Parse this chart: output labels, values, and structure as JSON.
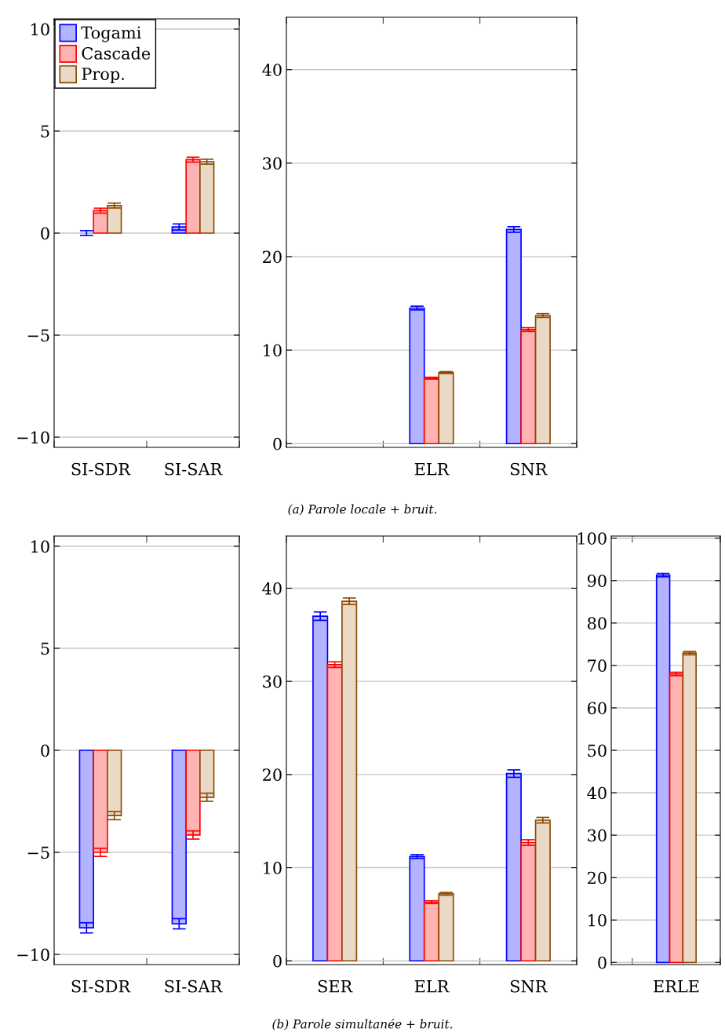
{
  "chart_data": [
    {
      "type": "bar",
      "categories": [
        "SI-SDR",
        "SI-SAR"
      ],
      "ylim": [
        -10.5,
        10.5
      ],
      "yticks": [
        -10,
        -5,
        0,
        5,
        10
      ],
      "grid": "y",
      "legend": "top left",
      "series": [
        {
          "name": "Togami",
          "color": "#b3b3ff",
          "values": [
            0.0,
            0.3
          ],
          "errors": [
            0.12,
            0.15
          ]
        },
        {
          "name": "Cascade",
          "color": "#ffb3b3",
          "values": [
            1.1,
            3.6
          ],
          "errors": [
            0.12,
            0.12
          ]
        },
        {
          "name": "Prop.",
          "color": "#ead9c6",
          "values": [
            1.35,
            3.5
          ],
          "errors": [
            0.12,
            0.12
          ]
        }
      ]
    },
    {
      "type": "bar",
      "categories": [
        null,
        "ELR",
        "SNR"
      ],
      "ylim": [
        -0.4,
        45.6
      ],
      "yticks": [
        0,
        10,
        20,
        30,
        40
      ],
      "grid": "y",
      "annotations": [
        "(a) Parole locale + bruit."
      ],
      "series": [
        {
          "color": "#b3b3ff",
          "values": [
            null,
            14.5,
            22.9
          ],
          "errors": [
            null,
            0.2,
            0.3
          ]
        },
        {
          "color": "#ffb3b3",
          "values": [
            null,
            7.0,
            12.2
          ],
          "errors": [
            null,
            0.1,
            0.2
          ]
        },
        {
          "color": "#ead9c6",
          "values": [
            null,
            7.6,
            13.7
          ],
          "errors": [
            null,
            0.1,
            0.2
          ]
        }
      ]
    },
    {
      "type": "bar",
      "categories": [
        "SI-SDR",
        "SI-SAR"
      ],
      "ylim": [
        -10.5,
        10.5
      ],
      "yticks": [
        -10,
        -5,
        0,
        5,
        10
      ],
      "grid": "y",
      "series": [
        {
          "color": "#b3b3ff",
          "values": [
            -8.7,
            -8.5
          ],
          "errors": [
            0.25,
            0.25
          ]
        },
        {
          "color": "#ffb3b3",
          "values": [
            -5.0,
            -4.15
          ],
          "errors": [
            0.2,
            0.2
          ]
        },
        {
          "color": "#ead9c6",
          "values": [
            -3.2,
            -2.3
          ],
          "errors": [
            0.2,
            0.2
          ]
        }
      ]
    },
    {
      "type": "bar",
      "categories": [
        "SER",
        "ELR",
        "SNR"
      ],
      "ylim": [
        -0.4,
        45.6
      ],
      "yticks": [
        0,
        10,
        20,
        30,
        40
      ],
      "grid": "y",
      "annotations": [
        "(b) Parole simultanée + bruit."
      ],
      "series": [
        {
          "color": "#b3b3ff",
          "values": [
            37.0,
            11.2,
            20.1
          ],
          "errors": [
            0.45,
            0.2,
            0.4
          ]
        },
        {
          "color": "#ffb3b3",
          "values": [
            31.8,
            6.3,
            12.7
          ],
          "errors": [
            0.3,
            0.15,
            0.3
          ]
        },
        {
          "color": "#ead9c6",
          "values": [
            38.6,
            7.2,
            15.1
          ],
          "errors": [
            0.35,
            0.15,
            0.3
          ]
        }
      ]
    },
    {
      "type": "bar",
      "categories": [
        "ERLE"
      ],
      "ylim": [
        -0.5,
        100.5
      ],
      "yticks": [
        0,
        10,
        20,
        30,
        40,
        50,
        60,
        70,
        80,
        90,
        100
      ],
      "grid": "y",
      "series": [
        {
          "color": "#b3b3ff",
          "values": [
            91.3
          ],
          "errors": [
            0.4
          ]
        },
        {
          "color": "#ffb3b3",
          "values": [
            68.0
          ],
          "errors": [
            0.4
          ]
        },
        {
          "color": "#ead9c6",
          "values": [
            72.9
          ],
          "errors": [
            0.4
          ]
        }
      ]
    }
  ]
}
